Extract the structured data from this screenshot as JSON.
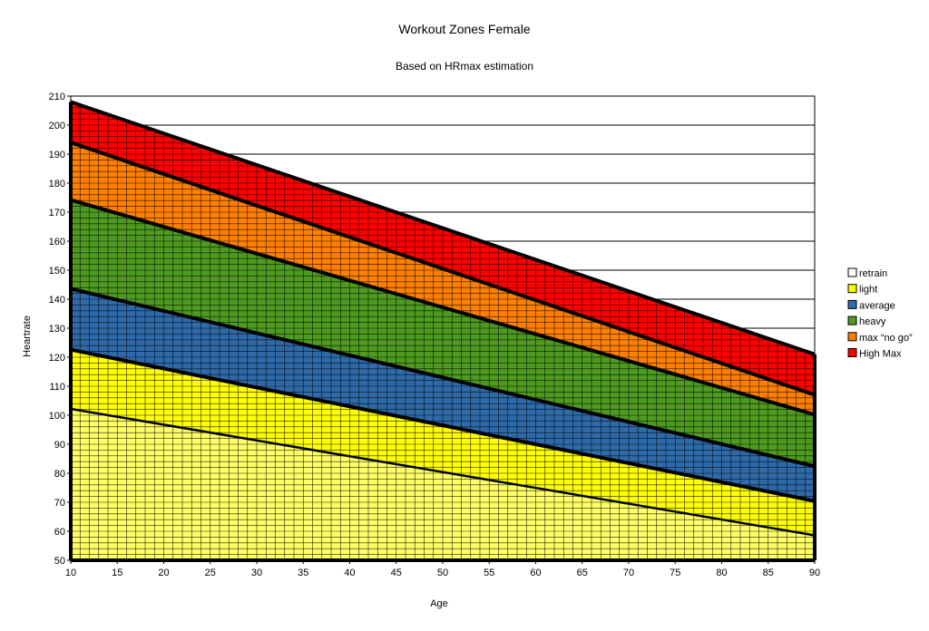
{
  "chart_data": {
    "type": "area",
    "title": "Workout Zones Female",
    "subtitle": "Based on HRmax estimation",
    "xlabel": "Age",
    "ylabel": "Heartrate",
    "xlim": [
      10,
      90
    ],
    "ylim": [
      50,
      210
    ],
    "xticks": [
      "10",
      "15",
      "20",
      "25",
      "30",
      "35",
      "40",
      "45",
      "50",
      "55",
      "60",
      "65",
      "70",
      "75",
      "80",
      "85",
      "90"
    ],
    "yticks": [
      "50",
      "60",
      "70",
      "80",
      "90",
      "100",
      "110",
      "120",
      "130",
      "140",
      "150",
      "160",
      "170",
      "180",
      "190",
      "200",
      "210"
    ],
    "grid": true,
    "legend_position": "right",
    "x": [
      10,
      90
    ],
    "series": [
      {
        "name": "retrain",
        "lower": [
          50,
          50
        ],
        "upper": [
          102.2,
          58.6
        ],
        "color": "#ffff66"
      },
      {
        "name": "light",
        "lower": [
          102.2,
          58.6
        ],
        "upper": [
          122.6,
          70.4
        ],
        "color": "#ffff00"
      },
      {
        "name": "average",
        "lower": [
          122.6,
          70.4
        ],
        "upper": [
          143.6,
          82.4
        ],
        "color": "#2e6aa8"
      },
      {
        "name": "heavy",
        "lower": [
          143.6,
          82.4
        ],
        "upper": [
          174.2,
          100.2
        ],
        "color": "#4e9a20"
      },
      {
        "name": "max “no go”",
        "lower": [
          174.2,
          100.2
        ],
        "upper": [
          194,
          107
        ],
        "color": "#ff8000"
      },
      {
        "name": "High Max",
        "lower": [
          194,
          107
        ],
        "upper": [
          208,
          121
        ],
        "color": "#ff0000"
      }
    ],
    "legend_swatches": [
      {
        "name": "retrain",
        "color": "#ffffff"
      },
      {
        "name": "light",
        "color": "#ffff00"
      },
      {
        "name": "average",
        "color": "#2e6aa8"
      },
      {
        "name": "heavy",
        "color": "#4e9a20"
      },
      {
        "name": "max “no go”",
        "color": "#ff8000"
      },
      {
        "name": "High Max",
        "color": "#ff0000"
      }
    ]
  }
}
